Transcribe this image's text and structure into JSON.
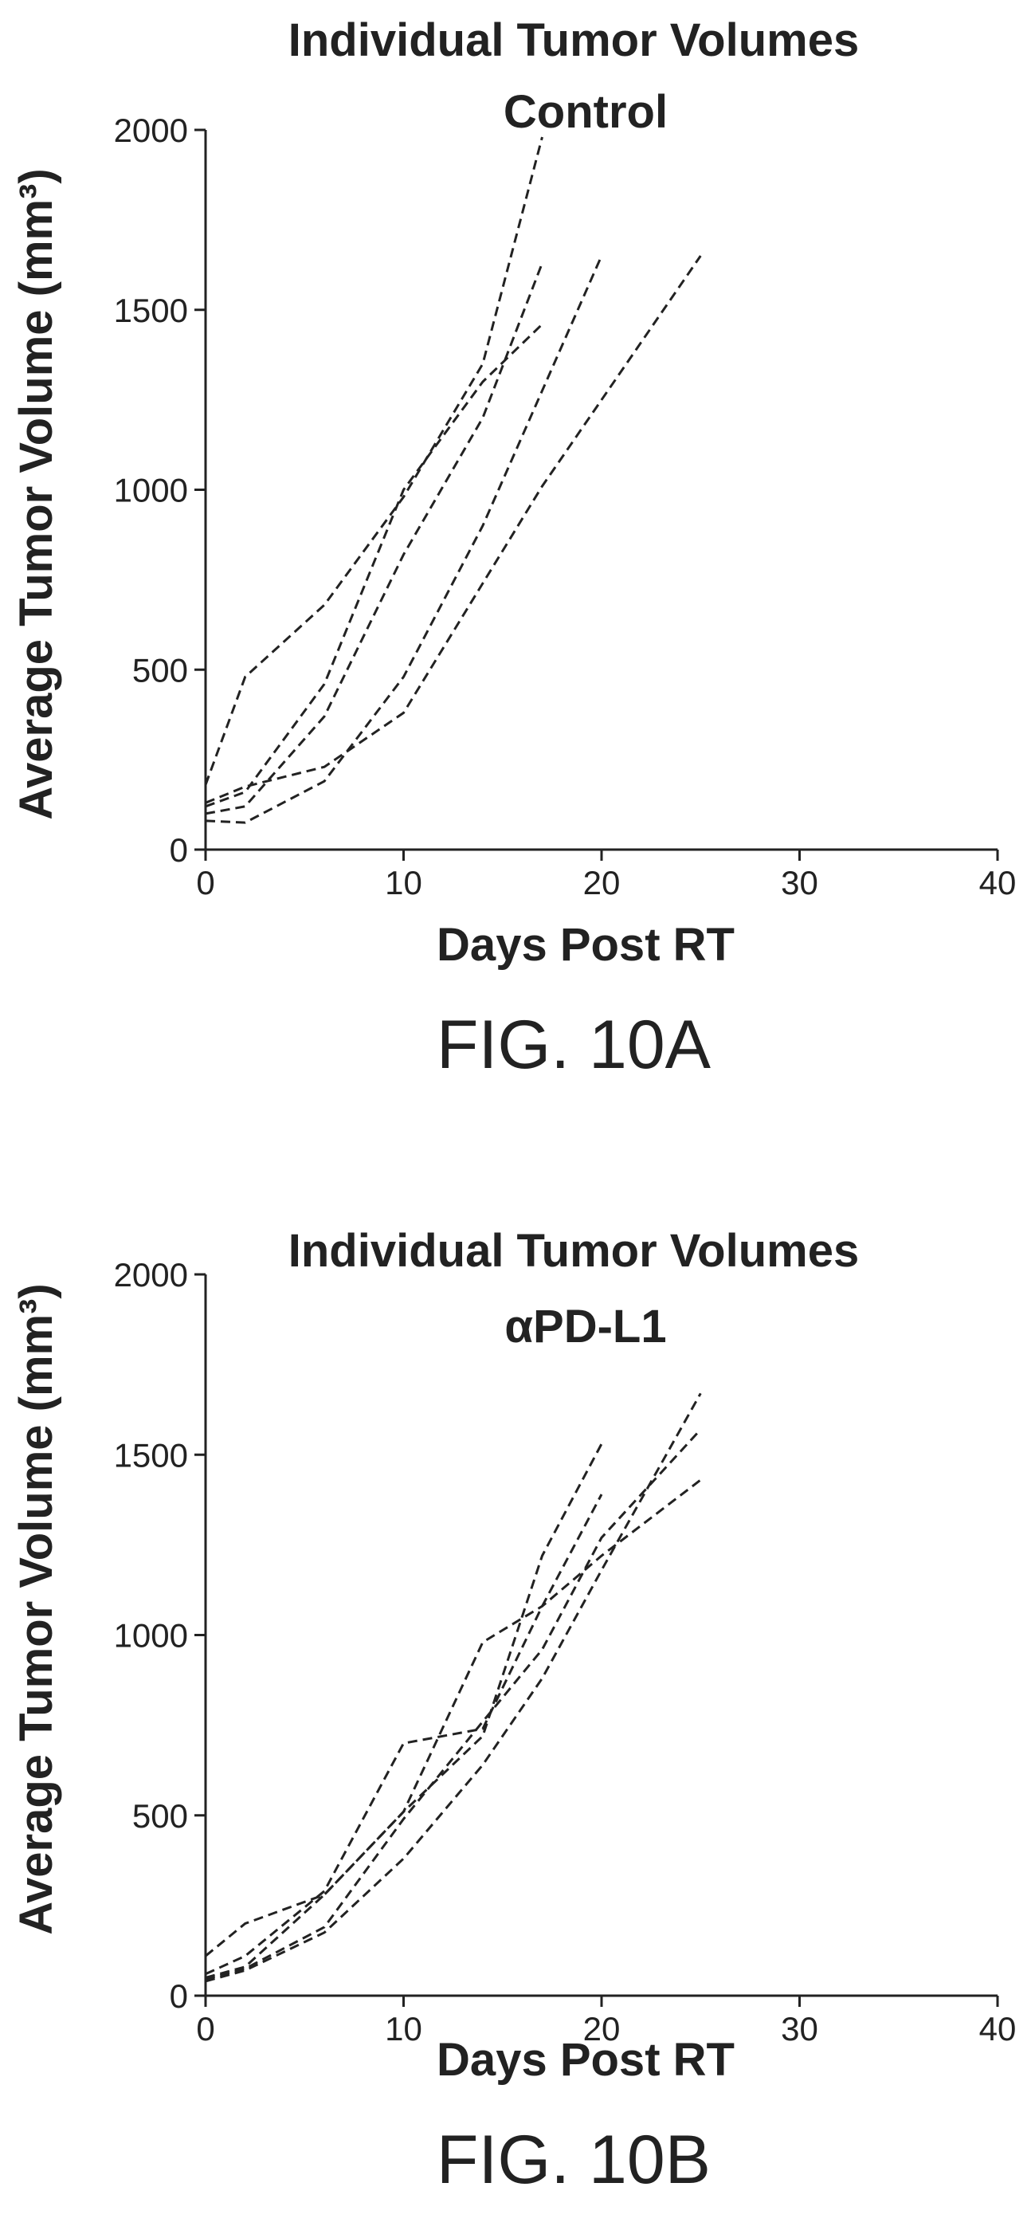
{
  "chart_data": [
    {
      "type": "line",
      "title": "Individual Tumor Volumes",
      "subtitle": "Control",
      "xlabel": "Days Post RT",
      "ylabel": "Average Tumor Volume (mm³)",
      "xlim": [
        0,
        40
      ],
      "ylim": [
        0,
        2000
      ],
      "xticks": [
        0,
        10,
        20,
        30,
        40
      ],
      "yticks": [
        0,
        500,
        1000,
        1500,
        2000
      ],
      "grid": false,
      "figure_label": "FIG. 10A",
      "series": [
        {
          "x": [
            0,
            2,
            6,
            10,
            14,
            17
          ],
          "y": [
            180,
            480,
            680,
            980,
            1350,
            1980
          ]
        },
        {
          "x": [
            0,
            2,
            6,
            10,
            14,
            17
          ],
          "y": [
            120,
            160,
            460,
            1000,
            1300,
            1460
          ]
        },
        {
          "x": [
            0,
            2,
            6,
            10,
            14,
            17
          ],
          "y": [
            100,
            120,
            370,
            820,
            1200,
            1630
          ]
        },
        {
          "x": [
            0,
            2,
            6,
            10,
            14,
            20
          ],
          "y": [
            80,
            75,
            190,
            480,
            900,
            1650
          ]
        },
        {
          "x": [
            0,
            2,
            6,
            10,
            14,
            17,
            25
          ],
          "y": [
            130,
            175,
            230,
            380,
            740,
            1010,
            1650
          ]
        }
      ]
    },
    {
      "type": "line",
      "title": "Individual Tumor Volumes",
      "subtitle": "αPD-L1",
      "xlabel": "Days Post RT",
      "ylabel": "Average Tumor Volume (mm³)",
      "xlim": [
        0,
        40
      ],
      "ylim": [
        0,
        2000
      ],
      "xticks": [
        0,
        10,
        20,
        30,
        40
      ],
      "yticks": [
        0,
        500,
        1000,
        1500,
        2000
      ],
      "grid": false,
      "figure_label": "FIG. 10B",
      "series": [
        {
          "x": [
            0,
            2,
            6,
            10,
            14,
            17,
            20
          ],
          "y": [
            110,
            200,
            280,
            510,
            720,
            1220,
            1530
          ]
        },
        {
          "x": [
            0,
            2,
            6,
            10,
            14,
            17,
            20
          ],
          "y": [
            60,
            110,
            290,
            700,
            740,
            1080,
            1390
          ]
        },
        {
          "x": [
            0,
            2,
            6,
            10,
            14,
            17,
            20,
            25
          ],
          "y": [
            50,
            80,
            280,
            510,
            980,
            1080,
            1220,
            1430
          ]
        },
        {
          "x": [
            0,
            2,
            6,
            10,
            14,
            17,
            20,
            25
          ],
          "y": [
            45,
            75,
            190,
            490,
            760,
            960,
            1270,
            1570
          ]
        },
        {
          "x": [
            0,
            2,
            6,
            10,
            14,
            17,
            20,
            25
          ],
          "y": [
            40,
            70,
            175,
            380,
            640,
            880,
            1180,
            1670
          ]
        }
      ]
    }
  ]
}
